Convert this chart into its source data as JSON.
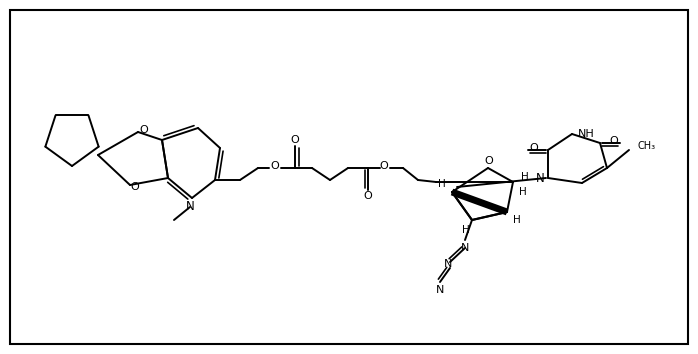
{
  "bg": "#ffffff",
  "lc": "#000000",
  "lw": 1.4,
  "fw": 6.98,
  "fh": 3.54,
  "dpi": 100,
  "border": [
    10,
    10,
    678,
    334
  ]
}
